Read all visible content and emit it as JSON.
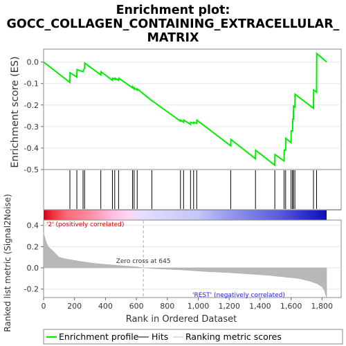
{
  "chart_data": {
    "type": "line",
    "title_line1": "Enrichment plot:",
    "title_line2": "GOCC_COLLAGEN_CONTAINING_EXTRACELLULAR_",
    "title_line3": "MATRIX",
    "xlabel": "Rank in Ordered Dataset",
    "ylabel_top": "Enrichment score (ES)",
    "ylabel_bottom": "Ranked list metric (Signal2Noise)",
    "n_genes": 1830,
    "xlim": [
      0,
      1830
    ],
    "es_ylim": [
      -0.5,
      0.06
    ],
    "metric_ylim": [
      -0.28,
      0.45
    ],
    "x_ticks": [
      0,
      200,
      400,
      600,
      800,
      1000,
      1200,
      1400,
      1600,
      1800
    ],
    "x_tick_labels": [
      "0",
      "200",
      "400",
      "600",
      "800",
      "1,000",
      "1,200",
      "1,400",
      "1,600",
      "1,800"
    ],
    "es_ticks": [
      0.0,
      -0.1,
      -0.2,
      -0.3,
      -0.4,
      -0.5
    ],
    "es_tick_labels": [
      "0.0",
      "-0.1",
      "-0.2",
      "-0.3",
      "-0.4",
      "-0.5"
    ],
    "metric_ticks": [
      0.4,
      0.2,
      0.0,
      -0.2
    ],
    "metric_tick_labels": [
      "0.4",
      "0.2",
      "0.0",
      "-0.2"
    ],
    "hits": [
      170,
      215,
      255,
      265,
      370,
      445,
      460,
      485,
      575,
      585,
      605,
      700,
      885,
      905,
      950,
      970,
      990,
      1210,
      1370,
      1495,
      1555,
      1565,
      1600,
      1610,
      1615,
      1625,
      1745,
      1765
    ],
    "es_points": [
      [
        0,
        0.0
      ],
      [
        170,
        -0.095
      ],
      [
        171,
        -0.05
      ],
      [
        215,
        -0.07
      ],
      [
        216,
        -0.035
      ],
      [
        255,
        -0.045
      ],
      [
        256,
        -0.04
      ],
      [
        265,
        -0.03
      ],
      [
        266,
        -0.005
      ],
      [
        370,
        -0.06
      ],
      [
        371,
        -0.045
      ],
      [
        445,
        -0.085
      ],
      [
        446,
        -0.075
      ],
      [
        460,
        -0.08
      ],
      [
        461,
        -0.075
      ],
      [
        485,
        -0.085
      ],
      [
        486,
        -0.075
      ],
      [
        575,
        -0.12
      ],
      [
        576,
        -0.115
      ],
      [
        585,
        -0.125
      ],
      [
        586,
        -0.12
      ],
      [
        605,
        -0.13
      ],
      [
        606,
        -0.125
      ],
      [
        700,
        -0.18
      ],
      [
        701,
        -0.18
      ],
      [
        885,
        -0.275
      ],
      [
        886,
        -0.27
      ],
      [
        905,
        -0.28
      ],
      [
        906,
        -0.27
      ],
      [
        950,
        -0.29
      ],
      [
        951,
        -0.28
      ],
      [
        970,
        -0.285
      ],
      [
        971,
        -0.28
      ],
      [
        990,
        -0.285
      ],
      [
        991,
        -0.27
      ],
      [
        1210,
        -0.39
      ],
      [
        1211,
        -0.36
      ],
      [
        1370,
        -0.45
      ],
      [
        1371,
        -0.41
      ],
      [
        1495,
        -0.48
      ],
      [
        1496,
        -0.43
      ],
      [
        1555,
        -0.46
      ],
      [
        1556,
        -0.41
      ],
      [
        1565,
        -0.41
      ],
      [
        1566,
        -0.355
      ],
      [
        1600,
        -0.375
      ],
      [
        1601,
        -0.32
      ],
      [
        1610,
        -0.32
      ],
      [
        1611,
        -0.265
      ],
      [
        1615,
        -0.265
      ],
      [
        1616,
        -0.205
      ],
      [
        1625,
        -0.21
      ],
      [
        1626,
        -0.15
      ],
      [
        1745,
        -0.215
      ],
      [
        1746,
        -0.13
      ],
      [
        1765,
        -0.14
      ],
      [
        1766,
        0.04
      ],
      [
        1830,
        0.0
      ]
    ],
    "metric_profile": [
      [
        0,
        0.33
      ],
      [
        5,
        0.3
      ],
      [
        15,
        0.25
      ],
      [
        30,
        0.2
      ],
      [
        60,
        0.16
      ],
      [
        100,
        0.1
      ],
      [
        140,
        0.085
      ],
      [
        200,
        0.07
      ],
      [
        260,
        0.055
      ],
      [
        340,
        0.04
      ],
      [
        420,
        0.03
      ],
      [
        500,
        0.02
      ],
      [
        600,
        0.01
      ],
      [
        645,
        0.0
      ],
      [
        750,
        -0.01
      ],
      [
        900,
        -0.02
      ],
      [
        1050,
        -0.035
      ],
      [
        1200,
        -0.045
      ],
      [
        1350,
        -0.06
      ],
      [
        1450,
        -0.07
      ],
      [
        1550,
        -0.085
      ],
      [
        1650,
        -0.1
      ],
      [
        1720,
        -0.125
      ],
      [
        1770,
        -0.15
      ],
      [
        1800,
        -0.18
      ],
      [
        1815,
        -0.21
      ],
      [
        1825,
        -0.26
      ],
      [
        1830,
        -0.28
      ]
    ],
    "zero_cross": 645,
    "zero_cross_label": "Zero cross at 645",
    "pos_label": "'2' (positively correlated)",
    "neg_label": "'REST' (negatively correlated)",
    "heat_stops": [
      [
        0,
        "#d9001e"
      ],
      [
        55,
        "#ee2f3c"
      ],
      [
        150,
        "#ff6a79"
      ],
      [
        290,
        "#ff8aa0"
      ],
      [
        450,
        "#ffbfe6"
      ],
      [
        550,
        "#ffd6f2"
      ],
      [
        640,
        "#e4e0ff"
      ],
      [
        800,
        "#d4d3fa"
      ],
      [
        1000,
        "#c5c5f7"
      ],
      [
        1130,
        "#a6a8f0"
      ],
      [
        1330,
        "#7d80e6"
      ],
      [
        1520,
        "#5b5ddb"
      ],
      [
        1690,
        "#2f2fcc"
      ],
      [
        1780,
        "#1a1ac0"
      ],
      [
        1830,
        "#1010b0"
      ]
    ],
    "legend": [
      {
        "label": "Enrichment profile",
        "color": "#00ff00"
      },
      {
        "label": "Hits",
        "color": "#000000"
      },
      {
        "label": "Ranking metric scores",
        "color": "#c0c0c0"
      }
    ]
  }
}
